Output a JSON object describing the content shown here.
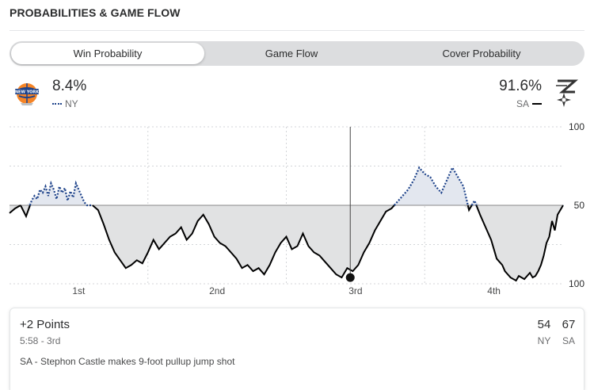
{
  "header": {
    "title": "PROBABILITIES & GAME FLOW"
  },
  "tabs": [
    {
      "label": "Win Probability",
      "active": true
    },
    {
      "label": "Game Flow",
      "active": false
    },
    {
      "label": "Cover Probability",
      "active": false
    }
  ],
  "teams": {
    "left": {
      "abbr": "NY",
      "win_pct": "8.4%",
      "logo_icon": "knicks-logo-icon",
      "line_color": "#1d428a",
      "line_style": "dotted"
    },
    "right": {
      "abbr": "SA",
      "win_pct": "91.6%",
      "logo_icon": "spurs-logo-icon",
      "line_color": "#000000",
      "line_style": "solid"
    }
  },
  "chart_data": {
    "type": "area",
    "title": "",
    "x_ticks": [
      "1st",
      "2nd",
      "3rd",
      "4th"
    ],
    "y_ticks": [
      "100",
      "50",
      "100"
    ],
    "grid": true,
    "x_domain": [
      0,
      1
    ],
    "y_domain": [
      -50,
      50
    ],
    "series": [
      {
        "x": [
          0,
          0.01,
          0.02,
          0.03,
          0.04,
          0.045,
          0.05,
          0.055,
          0.06,
          0.065,
          0.07,
          0.075,
          0.08,
          0.085,
          0.09,
          0.095,
          0.1,
          0.105,
          0.11,
          0.115,
          0.12,
          0.125,
          0.13,
          0.135,
          0.14,
          0.15,
          0.16,
          0.17,
          0.18,
          0.19,
          0.2,
          0.21,
          0.22,
          0.23,
          0.24,
          0.25,
          0.26,
          0.27,
          0.28,
          0.29,
          0.3,
          0.31,
          0.32,
          0.33,
          0.34,
          0.35,
          0.36,
          0.37,
          0.38,
          0.39,
          0.4,
          0.41,
          0.42,
          0.43,
          0.44,
          0.45,
          0.46,
          0.47,
          0.48,
          0.49,
          0.5,
          0.51,
          0.52,
          0.53,
          0.54,
          0.55,
          0.56,
          0.57,
          0.58,
          0.59,
          0.6,
          0.61,
          0.62,
          0.63,
          0.64,
          0.65,
          0.66,
          0.67,
          0.68,
          0.69,
          0.7,
          0.71,
          0.72,
          0.73,
          0.74,
          0.75,
          0.76,
          0.77,
          0.78,
          0.79,
          0.8,
          0.81,
          0.82,
          0.83,
          0.84,
          0.85,
          0.86,
          0.87,
          0.875,
          0.88,
          0.885,
          0.89,
          0.895,
          0.9,
          0.905,
          0.91,
          0.915,
          0.92,
          0.925,
          0.93,
          0.935,
          0.94,
          0.945,
          0.95,
          0.955,
          0.96,
          0.965,
          0.97,
          0.975,
          0.98,
          0.985,
          0.99,
          1.0
        ],
        "y": [
          -5,
          -2,
          0,
          -7,
          3,
          6,
          4,
          10,
          8,
          12,
          6,
          14,
          10,
          4,
          12,
          8,
          11,
          3,
          9,
          5,
          14,
          10,
          6,
          2,
          0,
          0,
          -3,
          -12,
          -22,
          -30,
          -35,
          -40,
          -38,
          -35,
          -37,
          -30,
          -22,
          -28,
          -24,
          -20,
          -18,
          -14,
          -22,
          -18,
          -10,
          -6,
          -12,
          -20,
          -24,
          -26,
          -30,
          -34,
          -40,
          -38,
          -42,
          -40,
          -44,
          -38,
          -30,
          -24,
          -20,
          -28,
          -26,
          -18,
          -26,
          -30,
          -32,
          -36,
          -40,
          -44,
          -46,
          -40,
          -42,
          -38,
          -30,
          -24,
          -16,
          -10,
          -4,
          -2,
          2,
          6,
          10,
          16,
          24,
          20,
          18,
          12,
          8,
          16,
          24,
          18,
          12,
          -3,
          3,
          -6,
          -14,
          -22,
          -28,
          -34,
          -36,
          -38,
          -42,
          -44,
          -46,
          -47,
          -48,
          -45,
          -46,
          -47,
          -45,
          -43,
          -46,
          -45,
          -42,
          -38,
          -32,
          -24,
          -20,
          -10,
          -16,
          -6,
          0
        ]
      }
    ],
    "current_marker": {
      "period": "3rd",
      "x": 0.6155,
      "y": -46,
      "time": "5:58 - 3rd"
    }
  },
  "play": {
    "title": "+2 Points",
    "time": "5:58 - 3rd",
    "description": "SA - Stephon Castle makes 9-foot pullup jump shot",
    "score_ny": "54",
    "score_sa": "67",
    "label_ny": "NY",
    "label_sa": "SA"
  }
}
